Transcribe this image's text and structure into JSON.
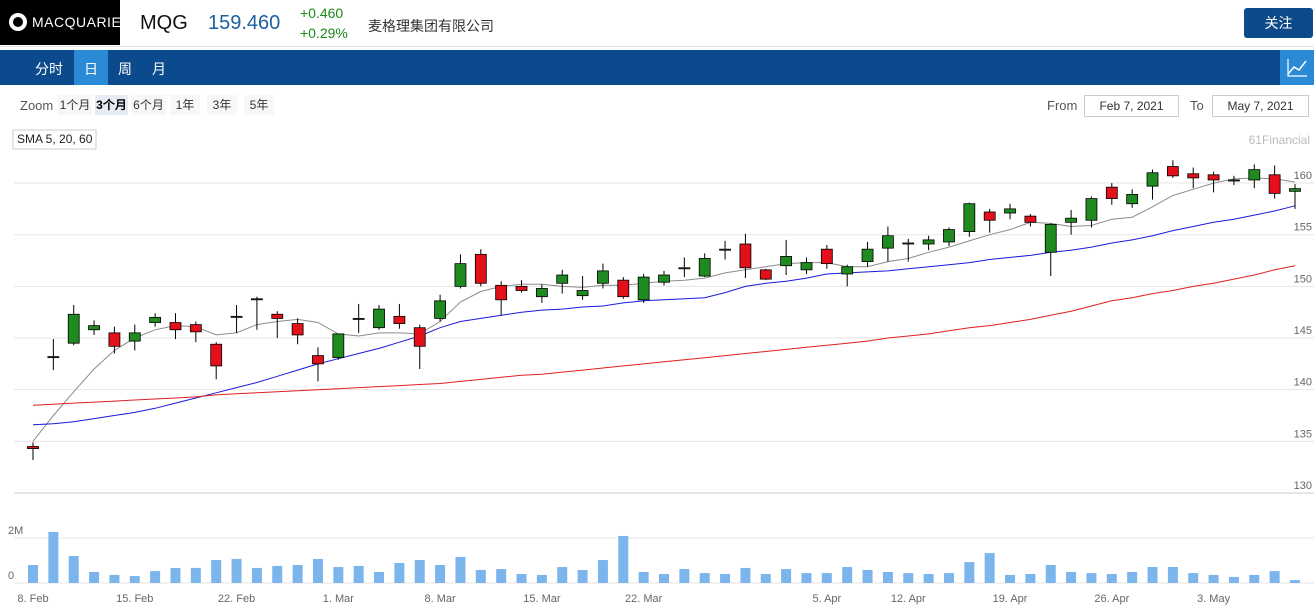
{
  "header": {
    "logo": "MACQUARIE",
    "ticker": "MQG",
    "price": "159.460",
    "change": "+0.460",
    "change_pct": "+0.29%",
    "company": "麦格理集团有限公司",
    "follow": "关注"
  },
  "tabs": {
    "items": [
      "分时",
      "日",
      "周",
      "月"
    ],
    "selected": 1
  },
  "zoom": {
    "label": "Zoom",
    "options": [
      "1个月",
      "3个月",
      "6个月",
      "1年",
      "3年",
      "5年"
    ],
    "selected": 1
  },
  "range": {
    "from_label": "From",
    "from": "Feb 7, 2021",
    "to_label": "To",
    "to": "May 7, 2021"
  },
  "chart_data": {
    "type": "candlestick",
    "indicator_label": "SMA 5, 20, 60",
    "credit": "61Financial",
    "categories": [
      "8. Feb",
      null,
      null,
      null,
      null,
      "15. Feb",
      null,
      null,
      null,
      null,
      "22. Feb",
      null,
      null,
      null,
      null,
      "1. Mar",
      null,
      null,
      null,
      null,
      "8. Mar",
      null,
      null,
      null,
      null,
      "15. Mar",
      null,
      null,
      null,
      null,
      "22. Mar",
      null,
      null,
      null,
      null,
      null,
      null,
      null,
      null,
      "5. Apr",
      null,
      null,
      null,
      "12. Apr",
      null,
      null,
      null,
      null,
      "19. Apr",
      null,
      null,
      null,
      null,
      "26. Apr",
      null,
      null,
      null,
      null,
      "3. May",
      null,
      null,
      null,
      null
    ],
    "open": [
      134.5,
      143.1,
      144.5,
      145.8,
      145.5,
      144.7,
      146.5,
      146.5,
      146.3,
      144.4,
      147.0,
      148.7,
      147.3,
      146.4,
      143.3,
      143.1,
      146.8,
      146.0,
      147.1,
      146.0,
      146.9,
      150.0,
      153.1,
      150.1,
      150.0,
      149.0,
      150.3,
      149.1,
      150.3,
      150.6,
      148.7,
      150.4,
      151.7,
      151.0,
      153.5,
      154.1,
      151.6,
      152.0,
      151.6,
      153.6,
      151.2,
      152.4,
      153.7,
      154.1,
      154.1,
      154.3,
      155.3,
      157.2,
      157.1,
      156.8,
      153.3,
      156.2,
      156.4,
      159.6,
      158.0,
      159.7,
      161.6,
      160.9,
      160.8,
      160.2,
      160.3,
      160.8,
      159.2
    ],
    "high": [
      134.9,
      144.9,
      148.2,
      146.7,
      146.1,
      146.3,
      147.4,
      147.4,
      146.6,
      144.6,
      148.2,
      149.0,
      147.6,
      146.9,
      144.1,
      145.4,
      148.3,
      148.2,
      148.3,
      146.3,
      149.2,
      153.1,
      153.6,
      150.5,
      150.6,
      150.2,
      151.6,
      151.0,
      152.2,
      150.9,
      151.2,
      151.5,
      152.8,
      153.2,
      154.4,
      155.1,
      151.7,
      154.5,
      152.8,
      154.0,
      152.1,
      154.3,
      155.8,
      154.6,
      154.9,
      155.7,
      158.1,
      157.5,
      158.0,
      157.0,
      156.1,
      157.4,
      158.7,
      160.0,
      159.4,
      161.3,
      162.2,
      161.5,
      161.1,
      160.7,
      161.8,
      161.7,
      159.9
    ],
    "low": [
      133.2,
      141.9,
      144.3,
      145.3,
      143.5,
      143.8,
      146.1,
      144.9,
      144.6,
      141.0,
      145.5,
      145.8,
      145.0,
      144.4,
      140.8,
      142.9,
      145.5,
      145.8,
      145.9,
      142.0,
      146.6,
      149.8,
      150.0,
      147.2,
      149.4,
      148.4,
      149.3,
      148.7,
      149.8,
      148.8,
      148.4,
      150.1,
      150.9,
      150.9,
      152.6,
      150.8,
      150.6,
      151.1,
      151.2,
      151.7,
      150.0,
      151.9,
      152.4,
      152.4,
      153.5,
      153.9,
      154.8,
      155.2,
      156.5,
      155.8,
      151.0,
      155.0,
      155.7,
      157.9,
      157.6,
      158.4,
      160.5,
      159.5,
      159.1,
      159.8,
      159.5,
      158.5,
      157.5
    ],
    "close": [
      134.3,
      143.2,
      147.3,
      146.2,
      144.2,
      145.5,
      147.0,
      145.8,
      145.6,
      142.3,
      147.1,
      148.8,
      146.9,
      145.3,
      142.5,
      145.4,
      146.9,
      147.8,
      146.4,
      144.2,
      148.6,
      152.2,
      150.3,
      148.7,
      149.6,
      149.8,
      151.1,
      149.6,
      151.5,
      149.0,
      150.9,
      151.1,
      151.8,
      152.7,
      153.6,
      151.8,
      150.7,
      152.9,
      152.3,
      152.2,
      151.9,
      153.6,
      154.9,
      154.2,
      154.5,
      155.5,
      158.0,
      156.4,
      157.5,
      156.2,
      156.0,
      156.6,
      158.5,
      158.5,
      158.9,
      161.0,
      160.7,
      160.5,
      160.3,
      160.3,
      161.3,
      159.0,
      159.46
    ],
    "up_color": "#1f8a1f",
    "down_color": "#e3101a",
    "ylim": [
      130,
      163.2
    ],
    "yticks": [
      130,
      135,
      140,
      145,
      150,
      155,
      160
    ],
    "grid": true,
    "overlays": [
      {
        "color": "#8c8c8c",
        "values": [
          135.0,
          137.5,
          139.8,
          142.0,
          143.8,
          145.0,
          145.8,
          146.2,
          146.1,
          145.3,
          145.5,
          146.3,
          146.6,
          146.8,
          146.5,
          145.4,
          145.2,
          145.5,
          145.5,
          145.4,
          146.6,
          148.5,
          149.5,
          150.0,
          150.2,
          150.2,
          150.0,
          149.9,
          150.1,
          150.1,
          150.3,
          150.5,
          150.6,
          150.8,
          151.3,
          151.6,
          151.9,
          152.2,
          152.3,
          152.3,
          151.9,
          151.9,
          152.4,
          152.7,
          153.3,
          153.8,
          154.4,
          155.0,
          155.5,
          156.2,
          156.1,
          155.8,
          155.9,
          156.5,
          156.7,
          157.7,
          158.8,
          159.4,
          160.0,
          160.4,
          160.5,
          160.4,
          160.1
        ]
      },
      {
        "color": "#1a1adb",
        "values": [
          136.6,
          136.7,
          136.9,
          137.2,
          137.5,
          137.8,
          138.2,
          138.7,
          139.2,
          139.7,
          140.2,
          140.7,
          141.3,
          141.9,
          142.5,
          143.0,
          143.5,
          144.0,
          144.6,
          145.2,
          146.0,
          146.6,
          146.9,
          147.2,
          147.5,
          147.7,
          147.8,
          148.0,
          148.1,
          148.4,
          148.6,
          148.7,
          148.8,
          148.9,
          149.4,
          150.0,
          150.3,
          150.5,
          150.8,
          151.2,
          151.3,
          151.4,
          151.5,
          151.7,
          151.9,
          152.1,
          152.3,
          152.6,
          152.8,
          153.0,
          153.3,
          153.5,
          153.8,
          154.2,
          154.5,
          154.9,
          155.4,
          155.8,
          156.2,
          156.5,
          156.9,
          157.3,
          157.8
        ]
      },
      {
        "color": "#e02020",
        "values": [
          138.5,
          138.6,
          138.7,
          138.8,
          138.9,
          139.0,
          139.1,
          139.2,
          139.3,
          139.5,
          139.6,
          139.7,
          139.8,
          139.9,
          140.0,
          140.1,
          140.2,
          140.3,
          140.4,
          140.5,
          140.6,
          140.8,
          141.0,
          141.2,
          141.4,
          141.5,
          141.7,
          141.9,
          142.1,
          142.3,
          142.5,
          142.7,
          142.9,
          143.1,
          143.3,
          143.5,
          143.7,
          143.9,
          144.1,
          144.3,
          144.5,
          144.7,
          145.0,
          145.2,
          145.4,
          145.7,
          146.0,
          146.2,
          146.5,
          146.8,
          147.2,
          147.6,
          148.1,
          148.6,
          148.9,
          149.3,
          149.6,
          150.0,
          150.3,
          150.7,
          151.1,
          151.6,
          152.0
        ]
      }
    ],
    "volume": {
      "color": "#7cb5ec",
      "ylim": [
        0,
        4000000
      ],
      "yticks": [
        0,
        {
          "value": 2000000,
          "label": "2M"
        }
      ],
      "values": [
        800000,
        2270000,
        1200000,
        490000,
        360000,
        310000,
        530000,
        670000,
        670000,
        1020000,
        1070000,
        670000,
        760000,
        800000,
        1070000,
        710000,
        760000,
        490000,
        890000,
        1020000,
        800000,
        1160000,
        580000,
        620000,
        400000,
        360000,
        710000,
        580000,
        1020000,
        2090000,
        490000,
        400000,
        620000,
        440000,
        400000,
        670000,
        400000,
        620000,
        440000,
        440000,
        710000,
        580000,
        490000,
        440000,
        400000,
        440000,
        930000,
        1330000,
        360000,
        400000,
        800000,
        490000,
        440000,
        400000,
        490000,
        710000,
        710000,
        440000,
        360000,
        270000,
        360000,
        530000,
        130000
      ]
    }
  }
}
